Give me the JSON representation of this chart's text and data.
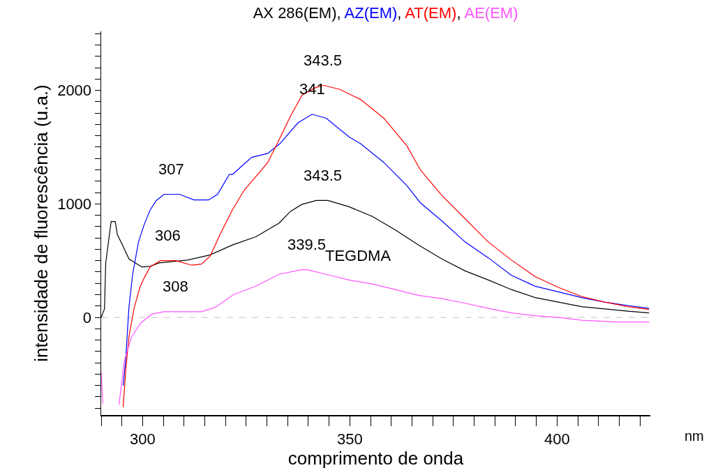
{
  "chart_data": {
    "type": "line",
    "title": "AX 286(EM), AZ(EM), AT(EM), AE(EM)",
    "xlabel": "comprimento de onda",
    "ylabel": "intensidade de fluorescência (u.a.)",
    "xlim": [
      290,
      422.5
    ],
    "ylim": [
      -860,
      2520
    ],
    "xticks": [
      {
        "value": 290,
        "label": null
      },
      {
        "value": 295,
        "label": null
      },
      300,
      {
        "value": 305,
        "label": null
      },
      {
        "value": 310,
        "label": null
      },
      {
        "value": 315,
        "label": null
      },
      {
        "value": 320,
        "label": null
      },
      {
        "value": 325,
        "label": null
      },
      {
        "value": 330,
        "label": null
      },
      {
        "value": 335,
        "label": null
      },
      {
        "value": 340,
        "label": null
      },
      {
        "value": 345,
        "label": null
      },
      350,
      {
        "value": 355,
        "label": null
      },
      {
        "value": 360,
        "label": null
      },
      {
        "value": 365,
        "label": null
      },
      {
        "value": 370,
        "label": null
      },
      {
        "value": 375,
        "label": null
      },
      {
        "value": 380,
        "label": null
      },
      {
        "value": 385,
        "label": null
      },
      {
        "value": 390,
        "label": null
      },
      {
        "value": 395,
        "label": null
      },
      400,
      {
        "value": 405,
        "label": null
      },
      {
        "value": 410,
        "label": null
      },
      {
        "value": 415,
        "label": null
      },
      {
        "value": 420,
        "label": null
      }
    ],
    "yticks": [
      {
        "value": -800,
        "label": null
      },
      {
        "value": -700,
        "label": null
      },
      {
        "value": -600,
        "label": null
      },
      {
        "value": -500,
        "label": null
      },
      {
        "value": -400,
        "label": null
      },
      {
        "value": -300,
        "label": null
      },
      {
        "value": -200,
        "label": null
      },
      {
        "value": -100,
        "label": null
      },
      0,
      {
        "value": 100,
        "label": null
      },
      {
        "value": 200,
        "label": null
      },
      {
        "value": 300,
        "label": null
      },
      {
        "value": 400,
        "label": null
      },
      {
        "value": 500,
        "label": null
      },
      {
        "value": 600,
        "label": null
      },
      {
        "value": 700,
        "label": null
      },
      {
        "value": 800,
        "label": null
      },
      {
        "value": 900,
        "label": null
      },
      1000,
      {
        "value": 1100,
        "label": null
      },
      {
        "value": 1200,
        "label": null
      },
      {
        "value": 1300,
        "label": null
      },
      {
        "value": 1400,
        "label": null
      },
      {
        "value": 1500,
        "label": null
      },
      {
        "value": 1600,
        "label": null
      },
      {
        "value": 1700,
        "label": null
      },
      {
        "value": 1800,
        "label": null
      },
      {
        "value": 1900,
        "label": null
      },
      2000,
      {
        "value": 2100,
        "label": null
      },
      {
        "value": 2200,
        "label": null
      },
      {
        "value": 2300,
        "label": null
      },
      {
        "value": 2400,
        "label": null
      },
      {
        "value": 2500,
        "label": null
      }
    ],
    "grid": false,
    "legend": false,
    "line_style": "solid",
    "marker": "none",
    "ref_lines": [
      {
        "axis": "y",
        "value": 0,
        "color": "#c0c0c0",
        "line_style": "dashed"
      }
    ],
    "series": [
      {
        "color": "#000000",
        "x": [
          290,
          290.8,
          291.1,
          292.4,
          293.4,
          293.9,
          295.3,
          296.7,
          299.8,
          301.8,
          304,
          310.8,
          316.2,
          321.8,
          327.3,
          332.9,
          335.7,
          338.4,
          341.9,
          344.7,
          349.8,
          355.4,
          361,
          366.5,
          372.2,
          377.8,
          383.4,
          389,
          394.7,
          400.3,
          405.9,
          411.5,
          417.1,
          422.2
        ],
        "values": [
          0,
          75,
          480,
          845,
          845,
          730,
          625,
          515,
          445,
          450,
          480,
          505,
          550,
          640,
          710,
          830,
          935,
          995,
          1030,
          1030,
          975,
          890,
          770,
          640,
          515,
          410,
          330,
          245,
          175,
          135,
          95,
          75,
          55,
          40
        ]
      },
      {
        "color": "#0000ff",
        "x": [
          295.3,
          295.9,
          296.7,
          297.6,
          299,
          300.4,
          301.8,
          303.3,
          305.2,
          308.9,
          312.4,
          315.9,
          318.1,
          320.9,
          321.7,
          326.3,
          330.2,
          333.1,
          337.5,
          340.9,
          344.3,
          349.8,
          352.6,
          358.2,
          363.8,
          367,
          372.2,
          377.8,
          383.4,
          389,
          394.7,
          400.3,
          405.9,
          411.5,
          417.1,
          422.2
        ],
        "values": [
          -600,
          -380,
          90,
          380,
          665,
          820,
          945,
          1030,
          1085,
          1085,
          1035,
          1035,
          1085,
          1260,
          1260,
          1410,
          1445,
          1530,
          1715,
          1790,
          1755,
          1590,
          1530,
          1365,
          1160,
          1010,
          850,
          665,
          525,
          370,
          275,
          225,
          175,
          135,
          105,
          80
        ]
      },
      {
        "color": "#ff0000",
        "x": [
          295.3,
          295.9,
          296.7,
          297.9,
          299.3,
          300.4,
          301.8,
          304.3,
          308,
          311.9,
          314.2,
          316.3,
          318.8,
          321.7,
          324.5,
          327.3,
          330.2,
          333,
          335.7,
          338.5,
          341.4,
          343.6,
          347.5,
          352.6,
          358.2,
          363.8,
          367,
          372.2,
          377.8,
          383.4,
          389,
          394.7,
          400.3,
          405.9,
          411.5,
          417.1,
          422.2
        ],
        "values": [
          -790,
          -480,
          -170,
          75,
          260,
          350,
          445,
          500,
          500,
          460,
          470,
          540,
          740,
          950,
          1120,
          1240,
          1365,
          1570,
          1775,
          1960,
          2020,
          2045,
          2010,
          1920,
          1755,
          1510,
          1300,
          1075,
          870,
          665,
          505,
          360,
          265,
          185,
          135,
          95,
          70
        ]
      },
      {
        "color": "#ff55ff",
        "x": [
          290,
          290.4,
          292,
          294.3,
          295.6,
          297.3,
          299.5,
          302.3,
          305.2,
          314.2,
          317.6,
          321.9,
          327.3,
          332.9,
          338.4,
          339.6,
          344.3,
          349.8,
          355.4,
          361,
          366.5,
          372.2,
          377.8,
          383.4,
          389,
          394.7,
          400.3,
          405.9,
          414.3,
          422.2
        ],
        "values": [
          -480,
          -760,
          null,
          -770,
          -380,
          -175,
          -50,
          30,
          50,
          50,
          90,
          200,
          275,
          380,
          420,
          420,
          380,
          330,
          295,
          245,
          195,
          165,
          125,
          80,
          40,
          15,
          0,
          -25,
          -40,
          -40
        ]
      }
    ],
    "annotations": [
      {
        "text": "343.5",
        "x": 343.5,
        "y": 2045
      },
      {
        "text": "341",
        "x": 341,
        "y": 1790
      },
      {
        "text": "307",
        "x": 307,
        "y": 1083
      },
      {
        "text": "343.5",
        "x": 343.5,
        "y": 1032
      },
      {
        "text": "306",
        "x": 306,
        "y": 500
      },
      {
        "text": "339.5",
        "x": 339.5,
        "y": 420
      },
      {
        "text": "308",
        "x": 308,
        "y": 50
      },
      {
        "text": "TEGDMA",
        "x": 352,
        "y": 320
      },
      "nm"
    ]
  }
}
